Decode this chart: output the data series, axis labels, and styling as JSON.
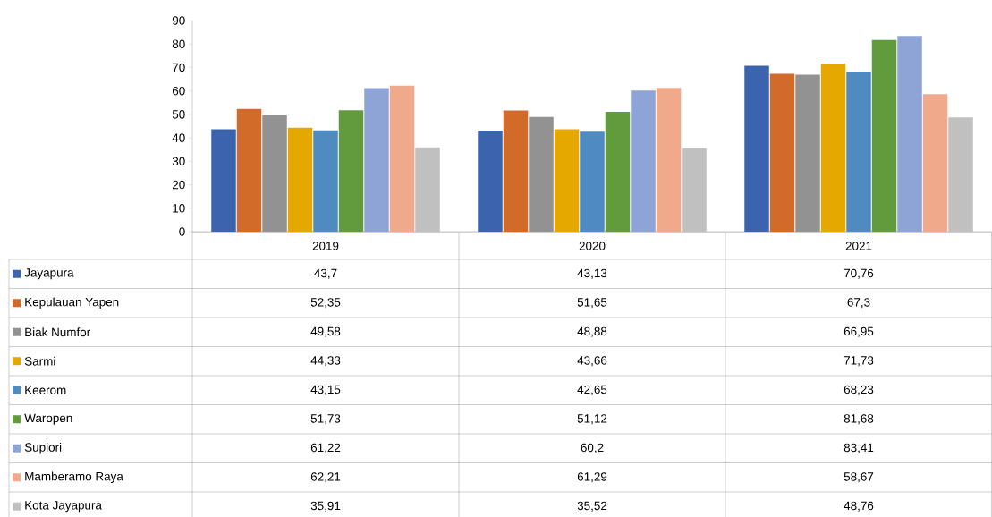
{
  "chart_data": {
    "type": "bar",
    "categories": [
      "2019",
      "2020",
      "2021"
    ],
    "series": [
      {
        "name": "Jayapura",
        "color": "#3c64ae",
        "values": [
          43.7,
          43.13,
          70.76
        ],
        "value_labels": [
          "43,7",
          "43,13",
          "70,76"
        ]
      },
      {
        "name": "Kepulauan Yapen",
        "color": "#d26b2a",
        "values": [
          52.35,
          51.65,
          67.3
        ],
        "value_labels": [
          "52,35",
          "51,65",
          "67,3"
        ]
      },
      {
        "name": "Biak Numfor",
        "color": "#929292",
        "values": [
          49.58,
          48.88,
          66.95
        ],
        "value_labels": [
          "49,58",
          "48,88",
          "66,95"
        ]
      },
      {
        "name": "Sarmi",
        "color": "#e5a800",
        "values": [
          44.33,
          43.66,
          71.73
        ],
        "value_labels": [
          "44,33",
          "43,66",
          "71,73"
        ]
      },
      {
        "name": "Keerom",
        "color": "#4f8bc0",
        "values": [
          43.15,
          42.65,
          68.23
        ],
        "value_labels": [
          "43,15",
          "42,65",
          "68,23"
        ]
      },
      {
        "name": "Waropen",
        "color": "#629a3e",
        "values": [
          51.73,
          51.12,
          81.68
        ],
        "value_labels": [
          "51,73",
          "51,12",
          "81,68"
        ]
      },
      {
        "name": "Supiori",
        "color": "#8fa4d6",
        "values": [
          61.22,
          60.2,
          83.41
        ],
        "value_labels": [
          "61,22",
          "60,2",
          "83,41"
        ]
      },
      {
        "name": "Mamberamo Raya",
        "color": "#f0a98a",
        "values": [
          62.21,
          61.29,
          58.67
        ],
        "value_labels": [
          "62,21",
          "61,29",
          "58,67"
        ]
      },
      {
        "name": "Kota Jayapura",
        "color": "#c0c0c0",
        "values": [
          35.91,
          35.52,
          48.76
        ],
        "value_labels": [
          "35,91",
          "35,52",
          "48,76"
        ]
      }
    ],
    "ylim": [
      0,
      90
    ],
    "yticks": [
      0,
      10,
      20,
      30,
      40,
      50,
      60,
      70,
      80,
      90
    ],
    "legend": "bottom"
  }
}
